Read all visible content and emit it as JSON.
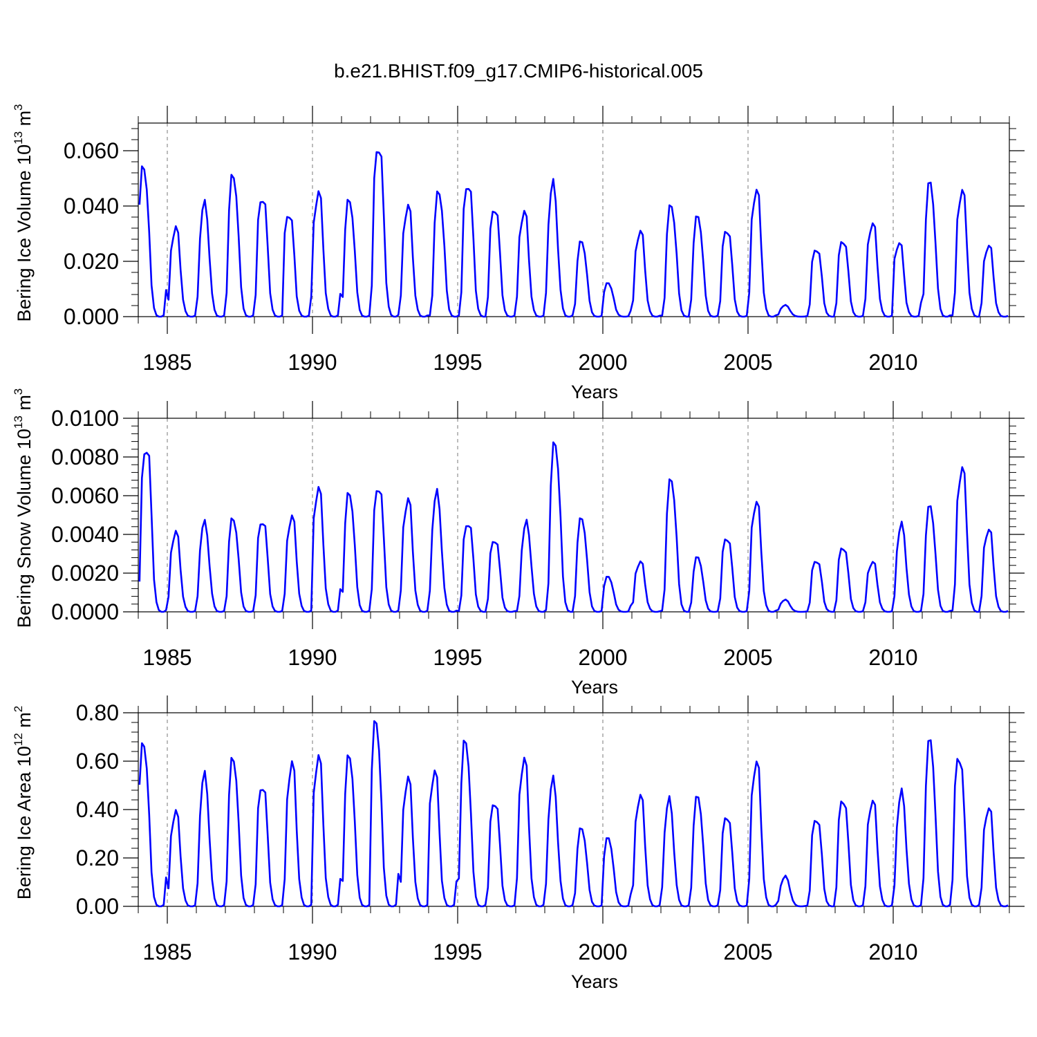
{
  "title": "b.e21.BHIST.f09_g17.CMIP6-historical.005",
  "colors": {
    "series": "#0000ff",
    "axis": "#000000",
    "grid": "#777777"
  },
  "chart_data": [
    {
      "type": "line",
      "id": "ice-volume",
      "ylabel": {
        "text": "Bering Ice Volume 10",
        "exp": "13",
        "unit": " m",
        "unit_exp": "3"
      },
      "xlabel": "Years",
      "xlim": [
        1984,
        2014
      ],
      "ylim": [
        0,
        0.07
      ],
      "yticks": [
        0,
        0.02,
        0.04,
        0.06
      ],
      "ytick_labels": [
        "0.000",
        "0.020",
        "0.040",
        "0.060"
      ],
      "xticks": [
        1985,
        1990,
        1995,
        2000,
        2005,
        2010
      ],
      "xtick_labels": [
        "1985",
        "1990",
        "1995",
        "2000",
        "2005",
        "2010"
      ],
      "grid_x": "dashed at major years",
      "peaks": [
        0.054,
        0.032,
        0.04,
        0.051,
        0.044,
        0.038,
        0.045,
        0.042,
        0.063,
        0.04,
        0.045,
        0.049,
        0.04,
        0.038,
        0.047,
        0.027,
        0.012,
        0.031,
        0.04,
        0.036,
        0.032,
        0.046,
        0.004,
        0.025,
        0.028,
        0.034,
        0.027,
        0.048,
        0.046,
        0.026
      ],
      "peak_months": [
        2,
        3,
        3,
        3,
        3,
        2,
        2,
        3,
        3,
        3,
        4,
        4,
        3,
        3,
        3,
        3,
        2,
        3,
        4,
        3,
        3,
        3,
        3,
        4,
        3,
        3,
        2,
        3,
        4,
        3
      ]
    },
    {
      "type": "line",
      "id": "snow-volume",
      "ylabel": {
        "text": "Bering Snow Volume 10",
        "exp": "13",
        "unit": " m",
        "unit_exp": "3"
      },
      "xlabel": "Years",
      "xlim": [
        1984,
        2014
      ],
      "ylim": [
        0,
        0.01
      ],
      "yticks": [
        0,
        0.002,
        0.004,
        0.006,
        0.008,
        0.01
      ],
      "ytick_labels": [
        "0.0000",
        "0.0020",
        "0.0040",
        "0.0060",
        "0.0080",
        "0.0100"
      ],
      "xticks": [
        1985,
        1990,
        1995,
        2000,
        2005,
        2010
      ],
      "xtick_labels": [
        "1985",
        "1990",
        "1995",
        "2000",
        "2005",
        "2010"
      ],
      "grid_x": "dashed at major years",
      "peaks": [
        0.0087,
        0.0041,
        0.0045,
        0.0048,
        0.0048,
        0.0049,
        0.0064,
        0.0061,
        0.0066,
        0.0058,
        0.006,
        0.0047,
        0.0038,
        0.0045,
        0.0087,
        0.0048,
        0.0018,
        0.0026,
        0.0068,
        0.0028,
        0.0039,
        0.0057,
        0.0006,
        0.0027,
        0.0034,
        0.0026,
        0.0044,
        0.0054,
        0.0075,
        0.0043
      ],
      "peak_months": [
        3,
        3,
        3,
        3,
        3,
        3,
        2,
        3,
        3,
        3,
        3,
        4,
        3,
        4,
        4,
        3,
        2,
        3,
        4,
        3,
        3,
        3,
        3,
        4,
        3,
        3,
        3,
        3,
        4,
        3
      ]
    },
    {
      "type": "line",
      "id": "ice-area",
      "ylabel": {
        "text": "Bering Ice Area 10",
        "exp": "12",
        "unit": " m",
        "unit_exp": "2"
      },
      "xlabel": "Years",
      "xlim": [
        1984,
        2014
      ],
      "ylim": [
        0,
        0.8
      ],
      "yticks": [
        0,
        0.2,
        0.4,
        0.6,
        0.8
      ],
      "ytick_labels": [
        "0.00",
        "0.20",
        "0.40",
        "0.60",
        "0.80"
      ],
      "xticks": [
        1985,
        1990,
        1995,
        2000,
        2005,
        2010
      ],
      "xtick_labels": [
        "1985",
        "1990",
        "1995",
        "2000",
        "2005",
        "2010"
      ],
      "grid_x": "dashed at major years",
      "peaks": [
        0.67,
        0.39,
        0.53,
        0.61,
        0.51,
        0.59,
        0.62,
        0.62,
        0.76,
        0.53,
        0.56,
        0.68,
        0.44,
        0.61,
        0.51,
        0.32,
        0.28,
        0.46,
        0.43,
        0.45,
        0.38,
        0.6,
        0.12,
        0.37,
        0.45,
        0.44,
        0.46,
        0.68,
        0.63,
        0.41
      ],
      "peak_months": [
        2,
        3,
        3,
        3,
        3,
        3,
        2,
        3,
        2,
        3,
        2,
        3,
        3,
        3,
        3,
        3,
        2,
        3,
        3,
        3,
        3,
        3,
        3,
        4,
        3,
        3,
        3,
        3,
        3,
        3
      ]
    }
  ]
}
